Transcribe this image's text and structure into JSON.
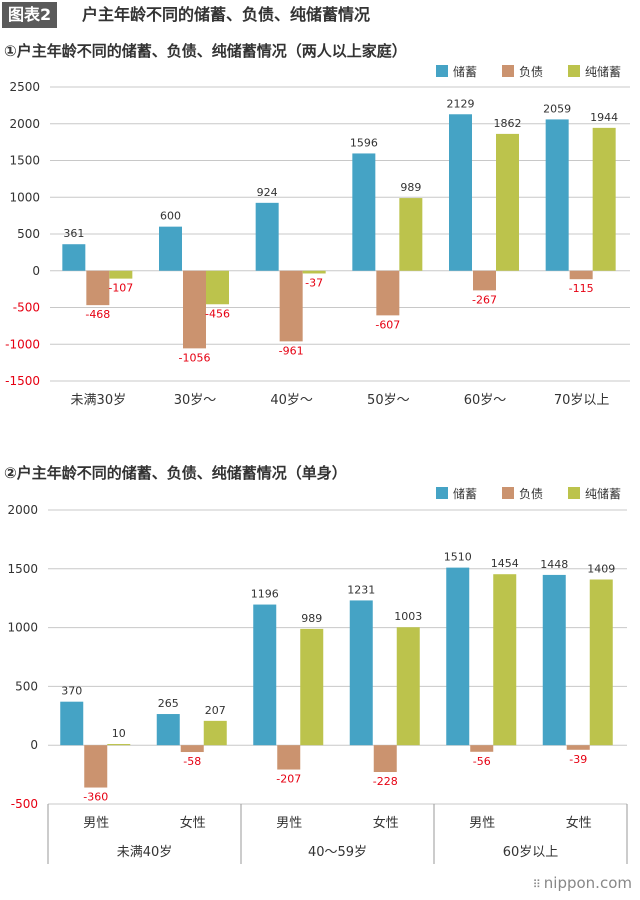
{
  "header": {
    "figure_label": "图表2",
    "title": "户主年龄不同的储蓄、负债、纯储蓄情况"
  },
  "colors": {
    "savings": "#45a3c5",
    "debt": "#cb936f",
    "net": "#bcc34c",
    "negative_label": "#e60012",
    "label": "#333333"
  },
  "chart_data": [
    {
      "type": "bar",
      "title": "①户主年龄不同的储蓄、负债、纯储蓄情况（两人以上家庭）",
      "categories": [
        "未满30岁",
        "30岁～",
        "40岁～",
        "50岁～",
        "60岁～",
        "70岁以上"
      ],
      "series": [
        {
          "name": "储蓄",
          "values": [
            361,
            600,
            924,
            1596,
            2129,
            2059
          ]
        },
        {
          "name": "负债",
          "values": [
            -468,
            -1056,
            -961,
            -607,
            -267,
            -115
          ]
        },
        {
          "name": "纯储蓄",
          "values": [
            -107,
            -456,
            -37,
            989,
            1862,
            1944
          ]
        }
      ],
      "ylim": [
        -1500,
        2500
      ],
      "yticks": [
        2500,
        2000,
        1500,
        1000,
        500,
        0,
        -500,
        -1000,
        -1500
      ],
      "ytick_labels": [
        "2500",
        "2000",
        "1500",
        "1000",
        "500",
        "0",
        "-500",
        "-1000",
        "-1500"
      ],
      "legend": "top-right",
      "grid": true
    },
    {
      "type": "bar",
      "title": "②户主年龄不同的储蓄、负债、纯储蓄情况（单身）",
      "categories": [
        "男性",
        "女性",
        "男性",
        "女性",
        "男性",
        "女性"
      ],
      "groups": [
        "未满40岁",
        "40～59岁",
        "60岁以上"
      ],
      "series": [
        {
          "name": "储蓄",
          "values": [
            370,
            265,
            1196,
            1231,
            1510,
            1448
          ]
        },
        {
          "name": "负债",
          "values": [
            -360,
            -58,
            -207,
            -228,
            -56,
            -39
          ]
        },
        {
          "name": "纯储蓄",
          "values": [
            10,
            207,
            989,
            1003,
            1454,
            1409
          ]
        }
      ],
      "ylim": [
        -500,
        2000
      ],
      "yticks": [
        2000,
        1500,
        1000,
        500,
        0,
        -500
      ],
      "ytick_labels": [
        "2000",
        "1500",
        "1000",
        "500",
        "0",
        "-500"
      ],
      "legend": "top-right",
      "grid": true
    }
  ],
  "brand": {
    "text": "nippon.com",
    "dots": "⠿"
  }
}
